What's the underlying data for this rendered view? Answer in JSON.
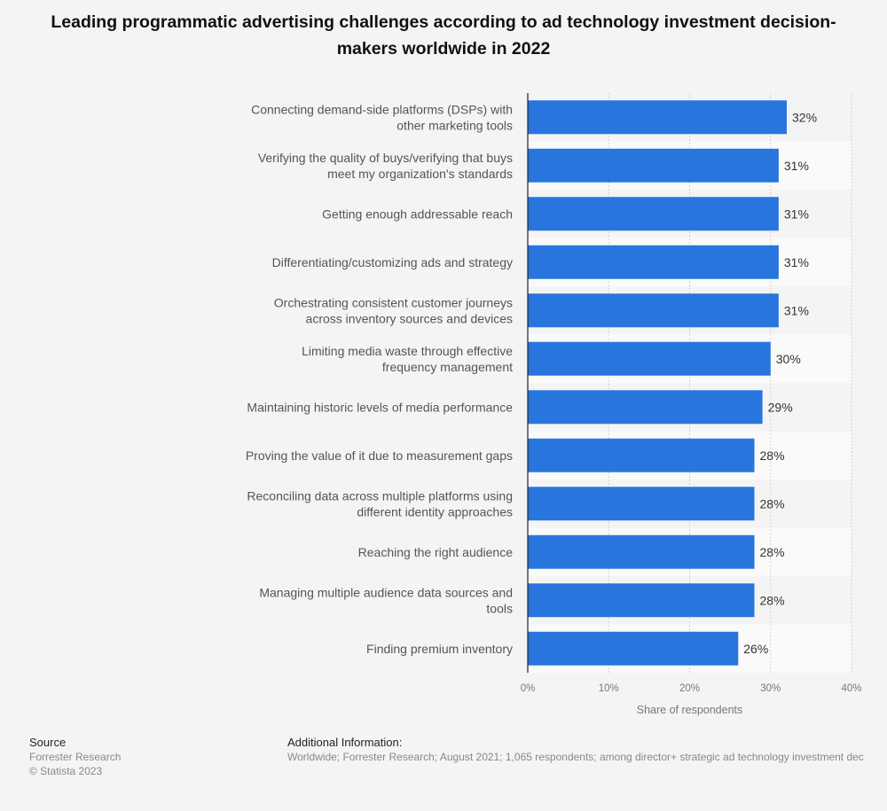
{
  "chart_data": {
    "type": "bar",
    "orientation": "horizontal",
    "title": "Leading programmatic advertising challenges according to ad technology investment decision-makers worldwide in 2022",
    "categories": [
      [
        "Connecting demand-side platforms (DSPs) with",
        "other marketing tools"
      ],
      [
        "Verifying the quality of buys/verifying that buys",
        "meet my organization's standards"
      ],
      [
        "Getting enough addressable reach"
      ],
      [
        "Differentiating/customizing ads and strategy"
      ],
      [
        "Orchestrating consistent customer journeys",
        "across inventory sources and devices"
      ],
      [
        "Limiting media waste through effective",
        "frequency management"
      ],
      [
        "Maintaining historic levels of media performance"
      ],
      [
        "Proving the value of it due to measurement gaps"
      ],
      [
        "Reconciling data across multiple platforms using",
        "different identity approaches"
      ],
      [
        "Reaching the right audience"
      ],
      [
        "Managing multiple audience data sources and",
        "tools"
      ],
      [
        "Finding premium inventory"
      ]
    ],
    "values": [
      32,
      31,
      31,
      31,
      31,
      30,
      29,
      28,
      28,
      28,
      28,
      26
    ],
    "value_labels": [
      "32%",
      "31%",
      "31%",
      "31%",
      "31%",
      "30%",
      "29%",
      "28%",
      "28%",
      "28%",
      "28%",
      "26%"
    ],
    "xlabel": "Share of respondents",
    "xlim": [
      0,
      40
    ],
    "ticks": [
      "0%",
      "10%",
      "20%",
      "30%",
      "40%"
    ],
    "grid": true,
    "bar_color": "#2876dd"
  },
  "footer": {
    "source_heading": "Source",
    "source": "Forrester Research",
    "copyright": "© Statista 2023",
    "additional_heading": "Additional Information:",
    "additional": "Worldwide; Forrester Research; August 2021; 1,065 respondents; among director+ strategic ad technology investment dec"
  }
}
